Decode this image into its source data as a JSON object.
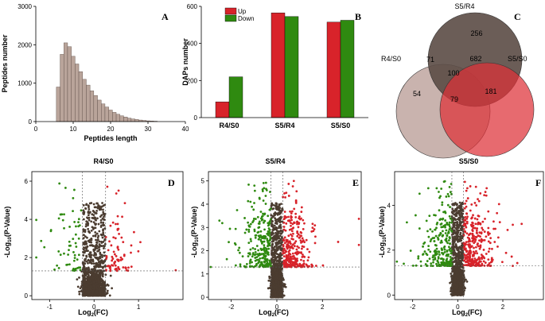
{
  "colors": {
    "up": "#d8232a",
    "down": "#2f8a10",
    "ns": "#4b3c30",
    "hist": "#b9a49a",
    "venn_r4s0": "#c9b3ae",
    "venn_s5r4": "#5b4b45",
    "venn_s5s0": "#de3038"
  },
  "chart_data": [
    {
      "type": "bar",
      "panel": "A",
      "xlabel": "Peptides length",
      "ylabel": "Peptides number",
      "xlim": [
        0,
        40
      ],
      "ylim": [
        0,
        3000
      ],
      "xticks": [
        "0",
        "10",
        "20",
        "30",
        "40"
      ],
      "yticks": [
        "0",
        "1000",
        "2000",
        "3000"
      ],
      "x": [
        6,
        7,
        8,
        9,
        10,
        11,
        12,
        13,
        14,
        15,
        16,
        17,
        18,
        19,
        20,
        21,
        22,
        23,
        24,
        25,
        26,
        27,
        28,
        29,
        30,
        31,
        32
      ],
      "values": [
        900,
        1750,
        2050,
        1950,
        1700,
        1500,
        1300,
        1100,
        950,
        800,
        680,
        560,
        460,
        380,
        300,
        240,
        190,
        150,
        120,
        90,
        70,
        55,
        40,
        30,
        20,
        15,
        10
      ]
    },
    {
      "type": "bar",
      "panel": "B",
      "ylabel": "DAPs number",
      "ylim": [
        0,
        600
      ],
      "yticks": [
        "0",
        "200",
        "400",
        "600"
      ],
      "categories": [
        "R4/S0",
        "S5/R4",
        "S5/S0"
      ],
      "series": [
        {
          "name": "Up",
          "values": [
            85,
            565,
            515
          ]
        },
        {
          "name": "Down",
          "values": [
            220,
            545,
            525
          ]
        }
      ]
    },
    {
      "type": "venn",
      "panel": "C",
      "sets": [
        "S5/R4",
        "R4/S0",
        "S5/S0"
      ],
      "regions": {
        "s5r4_only": "256",
        "r4s0_only": "54",
        "s5s0_only": "181",
        "s5r4_r4s0": "71",
        "s5r4_s5s0": "682",
        "r4s0_s5s0": "79",
        "all": "100"
      }
    },
    {
      "type": "scatter",
      "panel": "D",
      "title": "R4/S0",
      "xlabel": "Log2(FC)",
      "ylabel": "-Log10(P-Value)",
      "xlim": [
        -1.4,
        2.0
      ],
      "ylim": [
        -0.2,
        6.5
      ],
      "xticks": [
        -1,
        0,
        1
      ],
      "yticks": [
        0,
        2,
        4,
        6
      ],
      "fc_cut": 0.26,
      "p_cut": 1.3,
      "up_points": 80,
      "down_points": 60,
      "ns_points": 1500
    },
    {
      "type": "scatter",
      "panel": "E",
      "title": "S5/R4",
      "xlabel": "Log2(FC)",
      "ylabel": "-Log10(P-Value)",
      "xlim": [
        -3.0,
        3.7
      ],
      "ylim": [
        -0.1,
        5.4
      ],
      "xticks": [
        -2,
        0,
        2
      ],
      "yticks": [
        0,
        1,
        2,
        3,
        4,
        5
      ],
      "fc_cut": 0.26,
      "p_cut": 1.3,
      "up_points": 300,
      "down_points": 280,
      "ns_points": 1500
    },
    {
      "type": "scatter",
      "panel": "F",
      "title": "S5/S0",
      "xlabel": "Log2(FC)",
      "ylabel": "-Log10(P-Value)",
      "xlim": [
        -2.8,
        3.8
      ],
      "ylim": [
        -0.2,
        5.5
      ],
      "xticks": [
        -2,
        0,
        2
      ],
      "yticks": [
        0,
        2,
        4
      ],
      "fc_cut": 0.26,
      "p_cut": 1.3,
      "up_points": 320,
      "down_points": 250,
      "ns_points": 1500
    }
  ],
  "labels": {
    "a": {
      "letter": "A",
      "xlabel": "Peptides length",
      "ylabel": "Peptides number"
    },
    "b": {
      "letter": "B",
      "ylabel": "DAPs number",
      "legend_up": "Up",
      "legend_down": "Down"
    },
    "c": {
      "letter": "C",
      "set1": "S5/R4",
      "set2": "R4/S0",
      "set3": "S5/S0"
    },
    "d": {
      "letter": "D",
      "title": "R4/S0"
    },
    "e": {
      "letter": "E",
      "title": "S5/R4"
    },
    "f": {
      "letter": "F",
      "title": "S5/S0"
    },
    "xlab_base": "Log",
    "xlab_sub": "2",
    "xlab_tail": "(FC)",
    "ylab_base": "-Log",
    "ylab_sub": "10",
    "ylab_tail": "(P-Value)"
  }
}
